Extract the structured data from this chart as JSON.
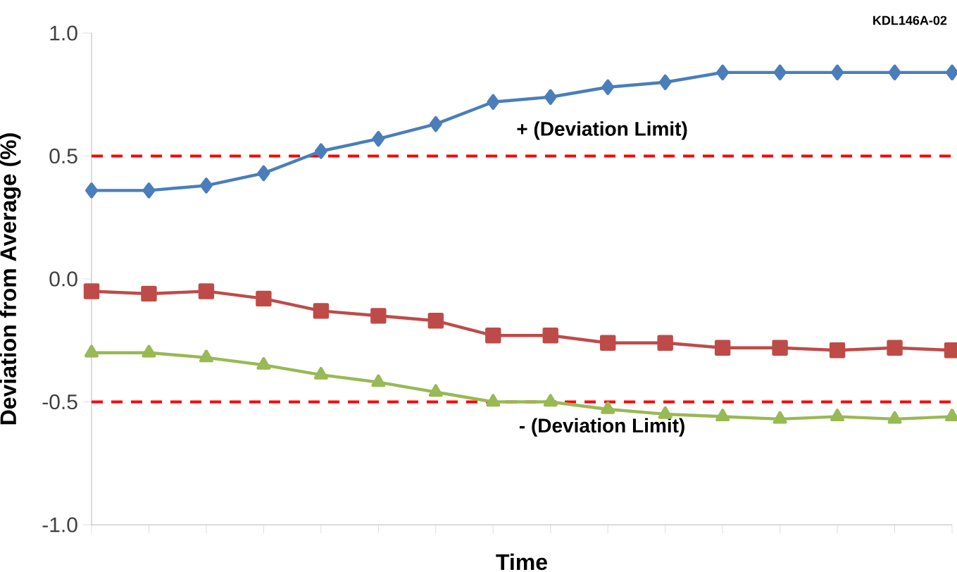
{
  "chart_data": {
    "type": "line",
    "xlabel": "Time",
    "ylabel": "Deviation from Average (%)",
    "categories": [
      null,
      null,
      null,
      null,
      null,
      null,
      null,
      null,
      null,
      null,
      null,
      null,
      null,
      null,
      null,
      null
    ],
    "ylim": [
      -1.0,
      1.0
    ],
    "yticks": [
      {
        "value": -1.0,
        "label": "-1.0"
      },
      {
        "value": -0.5,
        "label": "-0.5"
      },
      {
        "value": 0.0,
        "label": "0.0"
      },
      {
        "value": 0.5,
        "label": "0.5"
      },
      {
        "value": 1.0,
        "label": "1.0"
      }
    ],
    "series": [
      {
        "color": "#4a7ebb",
        "marker": "diamond",
        "values": [
          0.36,
          0.36,
          0.38,
          0.43,
          0.52,
          0.57,
          0.63,
          0.72,
          0.74,
          0.78,
          0.8,
          0.84,
          0.84,
          0.84,
          0.84,
          0.84
        ]
      },
      {
        "color": "#be4b48",
        "marker": "square",
        "values": [
          -0.05,
          -0.06,
          -0.05,
          -0.08,
          -0.13,
          -0.15,
          -0.17,
          -0.23,
          -0.23,
          -0.26,
          -0.26,
          -0.28,
          -0.28,
          -0.29,
          -0.28,
          -0.29
        ]
      },
      {
        "color": "#98b954",
        "marker": "triangle",
        "values": [
          -0.3,
          -0.3,
          -0.32,
          -0.35,
          -0.39,
          -0.42,
          -0.46,
          -0.5,
          -0.5,
          -0.53,
          -0.55,
          -0.56,
          -0.57,
          -0.56,
          -0.57,
          -0.56
        ]
      }
    ],
    "ref_lines": [
      {
        "axis": "y",
        "value": 0.5,
        "label": "+ (Deviation Limit)",
        "color": "#ff0000",
        "line_style": "dashed"
      },
      {
        "axis": "y",
        "value": -0.5,
        "label": "- (Deviation Limit)",
        "color": "#ff0000",
        "line_style": "dashed"
      }
    ],
    "annotations": [
      "KDL146A-02"
    ],
    "grid": false,
    "line_style": "solid"
  }
}
